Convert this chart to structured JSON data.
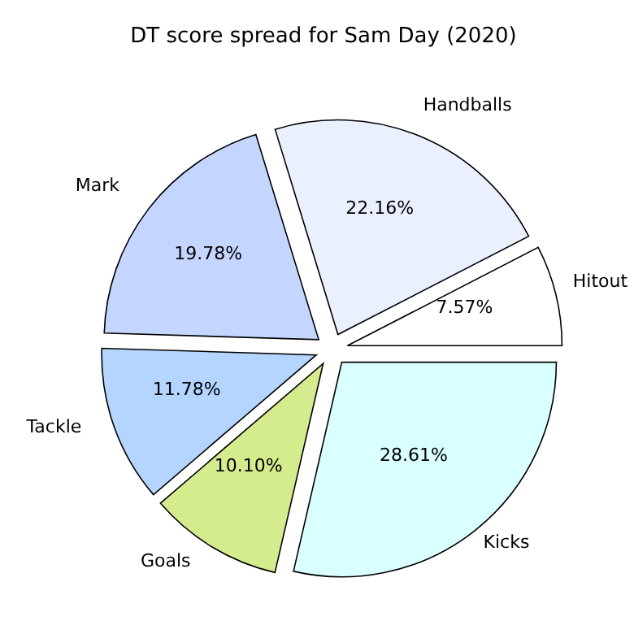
{
  "chart_data": {
    "type": "pie",
    "title": "DT score spread for Sam Day (2020)",
    "categories": [
      "Hitout",
      "Handballs",
      "Mark",
      "Tackle",
      "Goals",
      "Kicks"
    ],
    "values": [
      7.57,
      22.16,
      19.78,
      11.78,
      10.1,
      28.61
    ],
    "value_labels": [
      "7.57%",
      "22.16%",
      "19.78%",
      "11.78%",
      "10.10%",
      "28.61%"
    ],
    "colors": [
      "#ffffff",
      "#eaf0ff",
      "#c4d6ff",
      "#b3d5ff",
      "#d4ec8e",
      "#d9ffff"
    ]
  }
}
